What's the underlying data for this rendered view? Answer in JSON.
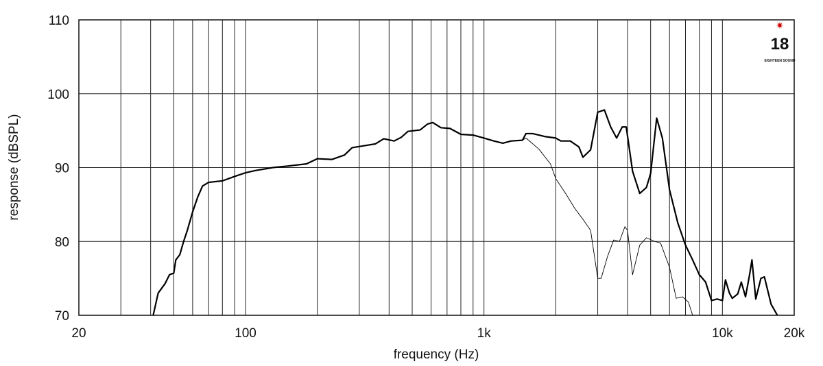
{
  "chart_data": {
    "type": "line",
    "x_label": "frequency (Hz)",
    "y_label": "response (dBSPL)",
    "xscale": "log",
    "xlim": [
      20,
      20000
    ],
    "ylim": [
      70,
      110
    ],
    "xticks": [
      20,
      100,
      {
        "value": 1000,
        "label": "1k"
      },
      {
        "value": 10000,
        "label": "10k"
      },
      {
        "value": 20000,
        "label": "20k"
      }
    ],
    "x_minor_grid": [
      30,
      40,
      50,
      60,
      70,
      80,
      90,
      200,
      300,
      400,
      500,
      600,
      700,
      800,
      900,
      2000,
      3000,
      4000,
      5000,
      6000,
      7000,
      8000,
      9000
    ],
    "yticks": [
      70,
      80,
      90,
      100,
      110
    ],
    "grid": true,
    "series": [
      {
        "color": "#000000",
        "width": 2.2,
        "x": [
          41,
          43,
          46,
          48,
          50,
          51,
          53,
          55,
          57,
          60,
          63,
          66,
          70,
          80,
          90,
          100,
          110,
          130,
          150,
          180,
          200,
          230,
          260,
          280,
          320,
          350,
          380,
          420,
          450,
          480,
          540,
          580,
          610,
          660,
          720,
          800,
          900,
          1000,
          1100,
          1200,
          1300,
          1450,
          1500,
          1600,
          1700,
          1800,
          2000,
          2100,
          2300,
          2500,
          2600,
          2800,
          3000,
          3200,
          3400,
          3600,
          3800,
          3950,
          4200,
          4500,
          4800,
          5000,
          5300,
          5600,
          6000,
          6500,
          7000,
          7500,
          8000,
          8500,
          9000,
          9500,
          10000,
          10300,
          10700,
          11000,
          11600,
          12000,
          12500,
          13000,
          13300,
          13800,
          14500,
          15000,
          16000,
          17000
        ],
        "values": [
          70,
          73,
          74.3,
          75.5,
          75.7,
          77.5,
          78.2,
          80,
          81.5,
          84,
          86,
          87.5,
          88,
          88.2,
          88.8,
          89.3,
          89.6,
          90,
          90.2,
          90.5,
          91.2,
          91.1,
          91.7,
          92.7,
          93,
          93.2,
          93.9,
          93.6,
          94.1,
          94.9,
          95.1,
          95.9,
          96.1,
          95.4,
          95.3,
          94.5,
          94.4,
          94,
          93.6,
          93.3,
          93.6,
          93.7,
          94.6,
          94.6,
          94.4,
          94.2,
          94,
          93.6,
          93.6,
          92.8,
          91.4,
          92.4,
          97.5,
          97.8,
          95.5,
          94,
          95.5,
          95.5,
          89.5,
          86.5,
          87.3,
          89.2,
          96.7,
          94,
          87,
          82.5,
          79.5,
          77.5,
          75.5,
          74.5,
          72,
          72.2,
          72,
          74.8,
          73,
          72.3,
          72.9,
          74.5,
          72.5,
          75.5,
          77.5,
          72.2,
          75,
          75.2,
          71.5,
          70
        ]
      },
      {
        "color": "#000000",
        "width": 0.9,
        "x": [
          1300,
          1450,
          1500,
          1700,
          1900,
          2000,
          2200,
          2400,
          2600,
          2800,
          3000,
          3100,
          3300,
          3500,
          3700,
          3900,
          4000,
          4200,
          4500,
          4800,
          5200,
          5500,
          6000,
          6400,
          6800,
          7200,
          7500
        ],
        "values": [
          93.6,
          93.7,
          94,
          92.5,
          90.5,
          88.5,
          86.5,
          84.5,
          83,
          81.5,
          75,
          75,
          78,
          80.2,
          80,
          82,
          81.5,
          75.5,
          79.5,
          80.5,
          80,
          79.8,
          76.5,
          72.3,
          72.5,
          71.8,
          70
        ]
      }
    ]
  },
  "logo": {
    "number": "18",
    "text": "EIGHTEEN SOUND"
  }
}
